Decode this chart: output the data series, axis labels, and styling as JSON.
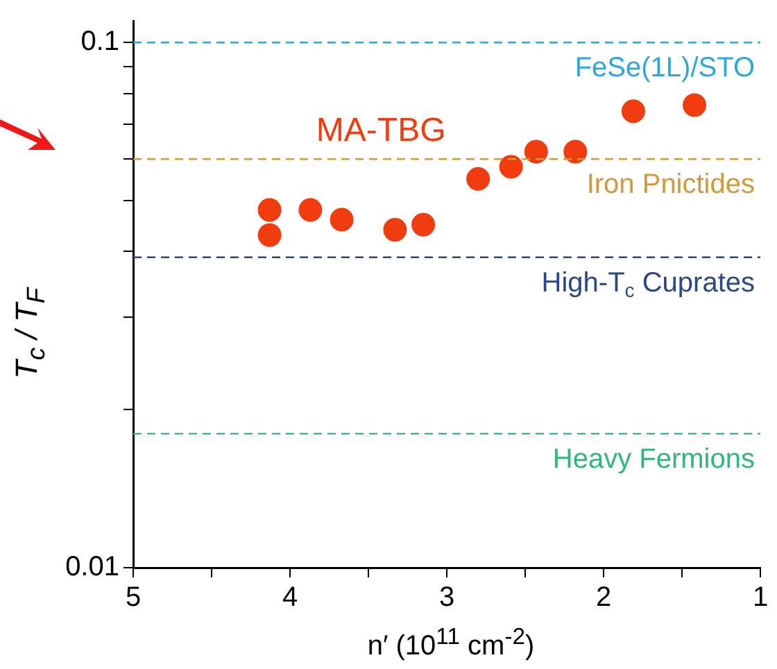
{
  "chart_data": {
    "type": "scatter",
    "xlabel": "n′ (10$^{11}$ cm$^{-2}$)",
    "ylabel": "T$_{c}$ / T$_{F}$",
    "series": [
      {
        "name": "MA-TBG",
        "color": "#f03c0f",
        "x": [
          4.13,
          4.13,
          3.87,
          3.67,
          3.33,
          3.15,
          2.8,
          2.59,
          2.43,
          2.18,
          1.81,
          1.42
        ],
        "values": [
          0.048,
          0.043,
          0.048,
          0.046,
          0.044,
          0.045,
          0.055,
          0.058,
          0.062,
          0.062,
          0.074,
          0.076
        ]
      }
    ],
    "marker": "circle",
    "log": "y",
    "xlim": [
      5,
      1
    ],
    "xticks": [
      5,
      {
        "value": 4.5,
        "label": null
      },
      4,
      {
        "value": 3.5,
        "label": null
      },
      3,
      {
        "value": 2.5,
        "label": null
      },
      2,
      {
        "value": 1.5,
        "label": null
      },
      1
    ],
    "ylim": [
      0.01,
      0.11
    ],
    "yticks": [
      0.01,
      {
        "value": 0.02,
        "label": null
      },
      {
        "value": 0.03,
        "label": null
      },
      {
        "value": 0.04,
        "label": null
      },
      {
        "value": 0.05,
        "label": null
      },
      {
        "value": 0.06,
        "label": null
      },
      {
        "value": 0.07,
        "label": null
      },
      {
        "value": 0.08,
        "label": null
      },
      {
        "value": 0.09,
        "label": null
      },
      0.1
    ],
    "grid": false,
    "legend": false,
    "ref_lines": [
      {
        "axis": "y",
        "value": 0.1,
        "label": "FeSe(1L)/STO",
        "color": "#2aa8de",
        "line_style": "dashed"
      },
      {
        "axis": "y",
        "value": 0.06,
        "label": "Iron Pnictides",
        "color": "#d09a3a",
        "line_style": "dashed"
      },
      {
        "axis": "y",
        "value": 0.039,
        "label": "High-T$_{c}$ Cuprates",
        "color": "#2b4788",
        "line_style": "dashed"
      },
      {
        "axis": "y",
        "value": 0.018,
        "label": "Heavy Fermions",
        "color": "#2fb878",
        "line_style": "dashed"
      }
    ]
  }
}
